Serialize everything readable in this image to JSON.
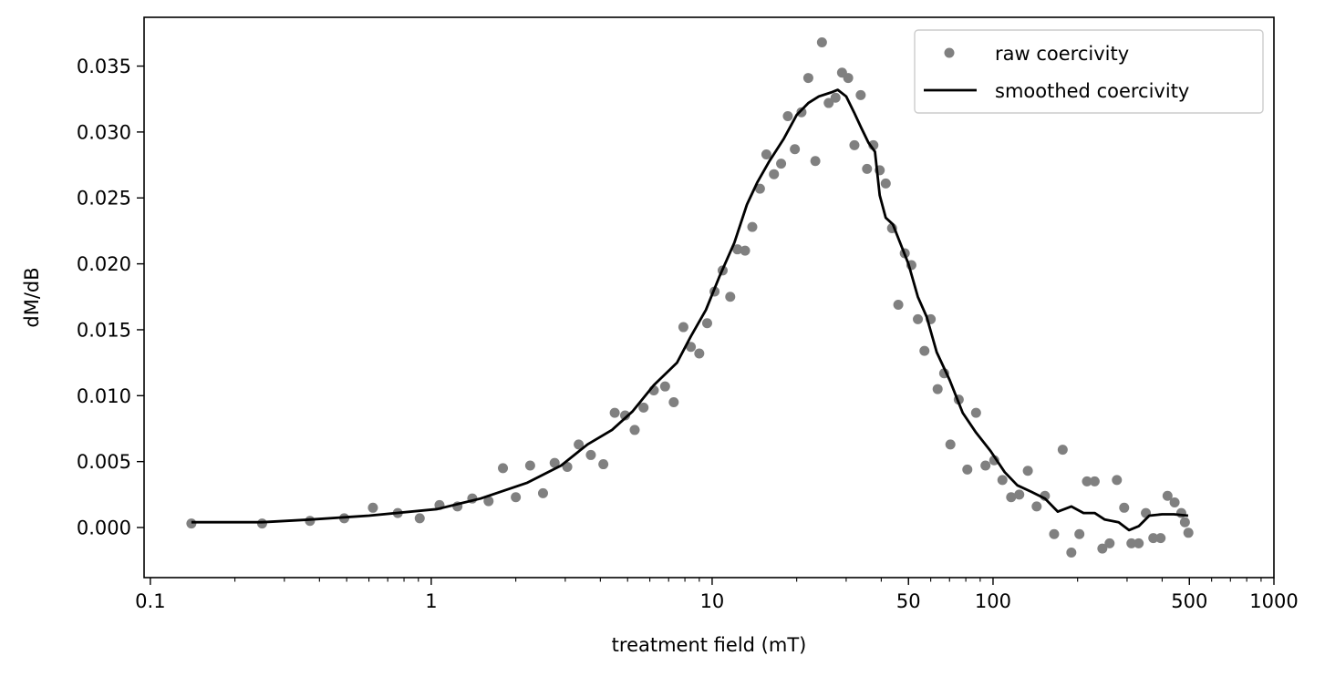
{
  "chart_data": {
    "type": "scatter",
    "title": "",
    "xlabel": "treatment field (mT)",
    "ylabel": "dM/dB",
    "xscale": "log",
    "xlim": [
      0.095,
      1000
    ],
    "ylim": [
      -0.0038,
      0.0387
    ],
    "x_ticks": [
      0.1,
      1,
      10,
      50,
      100,
      500,
      1000
    ],
    "x_tick_labels": [
      "0.1",
      "1",
      "10",
      "50",
      "100",
      "500",
      "1000"
    ],
    "y_ticks": [
      0.0,
      0.005,
      0.01,
      0.015,
      0.02,
      0.025,
      0.03,
      0.035
    ],
    "y_tick_labels": [
      "0.000",
      "0.005",
      "0.010",
      "0.015",
      "0.020",
      "0.025",
      "0.030",
      "0.035"
    ],
    "grid": false,
    "legend": {
      "position": "top-right",
      "entries": [
        "raw coercivity",
        "smoothed coercivity"
      ]
    },
    "series": [
      {
        "name": "raw coercivity",
        "kind": "scatter",
        "color": "#808080",
        "points": [
          [
            0.14,
            0.0003
          ],
          [
            0.25,
            0.0003
          ],
          [
            0.37,
            0.0005
          ],
          [
            0.49,
            0.0007
          ],
          [
            0.62,
            0.0015
          ],
          [
            0.76,
            0.0011
          ],
          [
            0.91,
            0.0007
          ],
          [
            1.07,
            0.0017
          ],
          [
            1.24,
            0.0016
          ],
          [
            1.4,
            0.0022
          ],
          [
            1.6,
            0.002
          ],
          [
            1.8,
            0.0045
          ],
          [
            2.0,
            0.0023
          ],
          [
            2.25,
            0.0047
          ],
          [
            2.5,
            0.0026
          ],
          [
            2.75,
            0.0049
          ],
          [
            3.05,
            0.0046
          ],
          [
            3.35,
            0.0063
          ],
          [
            3.7,
            0.0055
          ],
          [
            4.1,
            0.0048
          ],
          [
            4.5,
            0.0087
          ],
          [
            4.9,
            0.0085
          ],
          [
            5.3,
            0.0074
          ],
          [
            5.7,
            0.0091
          ],
          [
            6.2,
            0.0104
          ],
          [
            6.8,
            0.0107
          ],
          [
            7.3,
            0.0095
          ],
          [
            7.9,
            0.0152
          ],
          [
            8.4,
            0.0137
          ],
          [
            9.0,
            0.0132
          ],
          [
            9.6,
            0.0155
          ],
          [
            10.2,
            0.0179
          ],
          [
            10.9,
            0.0195
          ],
          [
            11.6,
            0.0175
          ],
          [
            12.3,
            0.0211
          ],
          [
            13.1,
            0.021
          ],
          [
            13.9,
            0.0228
          ],
          [
            14.8,
            0.0257
          ],
          [
            15.6,
            0.0283
          ],
          [
            16.6,
            0.0268
          ],
          [
            17.6,
            0.0276
          ],
          [
            18.6,
            0.0312
          ],
          [
            19.7,
            0.0287
          ],
          [
            20.8,
            0.0315
          ],
          [
            22.0,
            0.0341
          ],
          [
            23.3,
            0.0278
          ],
          [
            24.6,
            0.0368
          ],
          [
            26.0,
            0.0322
          ],
          [
            27.5,
            0.0326
          ],
          [
            29.0,
            0.0345
          ],
          [
            30.5,
            0.0341
          ],
          [
            32.1,
            0.029
          ],
          [
            33.8,
            0.0328
          ],
          [
            35.6,
            0.0272
          ],
          [
            37.5,
            0.029
          ],
          [
            39.5,
            0.0271
          ],
          [
            41.5,
            0.0261
          ],
          [
            43.7,
            0.0227
          ],
          [
            46.0,
            0.0169
          ],
          [
            48.5,
            0.0208
          ],
          [
            51.2,
            0.0199
          ],
          [
            54.0,
            0.0158
          ],
          [
            57.0,
            0.0134
          ],
          [
            60.0,
            0.0158
          ],
          [
            63.5,
            0.0105
          ],
          [
            67.0,
            0.0117
          ],
          [
            70.5,
            0.0063
          ],
          [
            75.5,
            0.0097
          ],
          [
            81.0,
            0.0044
          ],
          [
            87.0,
            0.0087
          ],
          [
            94.0,
            0.0047
          ],
          [
            101.0,
            0.0051
          ],
          [
            108.0,
            0.0036
          ],
          [
            116.0,
            0.0023
          ],
          [
            124.0,
            0.0025
          ],
          [
            133.0,
            0.0043
          ],
          [
            143.0,
            0.0016
          ],
          [
            153.0,
            0.0024
          ],
          [
            165.0,
            -0.0005
          ],
          [
            177.0,
            0.0059
          ],
          [
            190.0,
            -0.0019
          ],
          [
            203.0,
            -0.0005
          ],
          [
            216.0,
            0.0035
          ],
          [
            230.0,
            0.0035
          ],
          [
            245.0,
            -0.0016
          ],
          [
            260.0,
            -0.0012
          ],
          [
            276.0,
            0.0036
          ],
          [
            293.0,
            0.0015
          ],
          [
            311.0,
            -0.0012
          ],
          [
            330.0,
            -0.0012
          ],
          [
            350.0,
            0.0011
          ],
          [
            372.0,
            -0.0008
          ],
          [
            395.0,
            -0.0008
          ],
          [
            418.0,
            0.0024
          ],
          [
            443.0,
            0.0019
          ],
          [
            468.0,
            0.0011
          ],
          [
            482.0,
            0.0004
          ],
          [
            496.0,
            -0.0004
          ]
        ]
      },
      {
        "name": "smoothed coercivity",
        "kind": "line",
        "color": "#000000",
        "points": [
          [
            0.14,
            0.0004
          ],
          [
            0.25,
            0.0004
          ],
          [
            0.37,
            0.0006
          ],
          [
            0.6,
            0.0009
          ],
          [
            1.05,
            0.0014
          ],
          [
            1.5,
            0.0022
          ],
          [
            2.2,
            0.0034
          ],
          [
            2.9,
            0.0047
          ],
          [
            3.6,
            0.0063
          ],
          [
            4.4,
            0.0074
          ],
          [
            5.2,
            0.0088
          ],
          [
            6.2,
            0.0108
          ],
          [
            7.5,
            0.0125
          ],
          [
            8.4,
            0.0145
          ],
          [
            9.5,
            0.0165
          ],
          [
            10.6,
            0.019
          ],
          [
            12.0,
            0.0216
          ],
          [
            13.3,
            0.0245
          ],
          [
            14.5,
            0.0262
          ],
          [
            16.0,
            0.0278
          ],
          [
            18.0,
            0.0295
          ],
          [
            20.0,
            0.0313
          ],
          [
            22.0,
            0.0322
          ],
          [
            24.0,
            0.0327
          ],
          [
            26.5,
            0.033
          ],
          [
            28.0,
            0.0332
          ],
          [
            30.0,
            0.0327
          ],
          [
            32.0,
            0.0315
          ],
          [
            34.0,
            0.0303
          ],
          [
            36.0,
            0.0292
          ],
          [
            38.0,
            0.0285
          ],
          [
            39.5,
            0.0252
          ],
          [
            41.5,
            0.0235
          ],
          [
            44.0,
            0.023
          ],
          [
            46.5,
            0.0217
          ],
          [
            50.0,
            0.02
          ],
          [
            54.0,
            0.0175
          ],
          [
            58.0,
            0.016
          ],
          [
            63.0,
            0.0133
          ],
          [
            70.0,
            0.0112
          ],
          [
            78.0,
            0.0087
          ],
          [
            87.0,
            0.0072
          ],
          [
            98.0,
            0.0058
          ],
          [
            110.0,
            0.0042
          ],
          [
            122.0,
            0.0032
          ],
          [
            137.0,
            0.0027
          ],
          [
            153.0,
            0.0022
          ],
          [
            170.0,
            0.0012
          ],
          [
            190.0,
            0.0016
          ],
          [
            210.0,
            0.0011
          ],
          [
            230.0,
            0.0011
          ],
          [
            250.0,
            0.0006
          ],
          [
            280.0,
            0.0004
          ],
          [
            305.0,
            -0.0002
          ],
          [
            330.0,
            0.0001
          ],
          [
            360.0,
            0.0009
          ],
          [
            400.0,
            0.001
          ],
          [
            440.0,
            0.001
          ],
          [
            495.0,
            0.0009
          ]
        ]
      }
    ]
  }
}
